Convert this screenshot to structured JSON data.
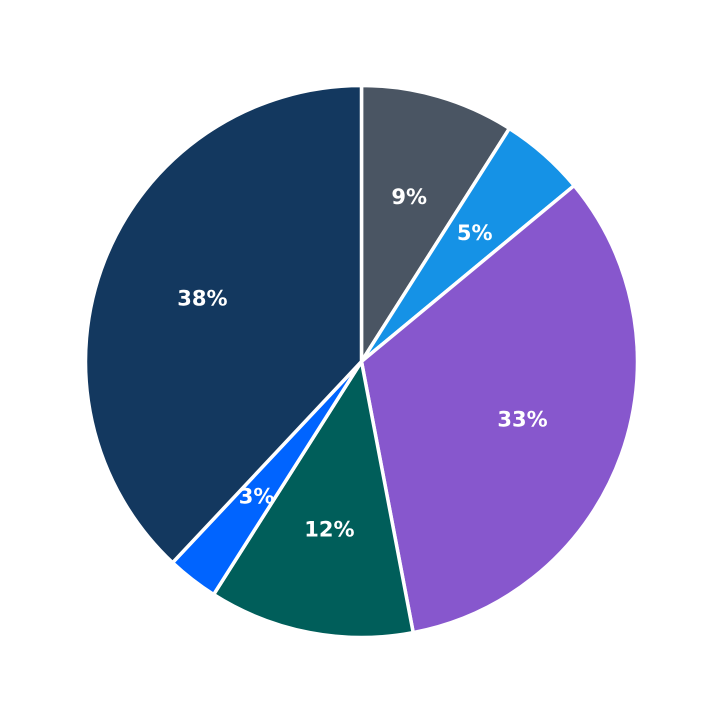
{
  "chart_data": {
    "type": "pie",
    "title": "",
    "start_angle_deg": 90,
    "direction": "clockwise",
    "slices": [
      {
        "value": 9,
        "label": "9%",
        "color": "#4a5563"
      },
      {
        "value": 5,
        "label": "5%",
        "color": "#1592e6"
      },
      {
        "value": 33,
        "label": "33%",
        "color": "#8757cd"
      },
      {
        "value": 12,
        "label": "12%",
        "color": "#005e5a"
      },
      {
        "value": 3,
        "label": "3%",
        "color": "#0064ff"
      },
      {
        "value": 38,
        "label": "38%",
        "color": "#13385f"
      }
    ]
  }
}
